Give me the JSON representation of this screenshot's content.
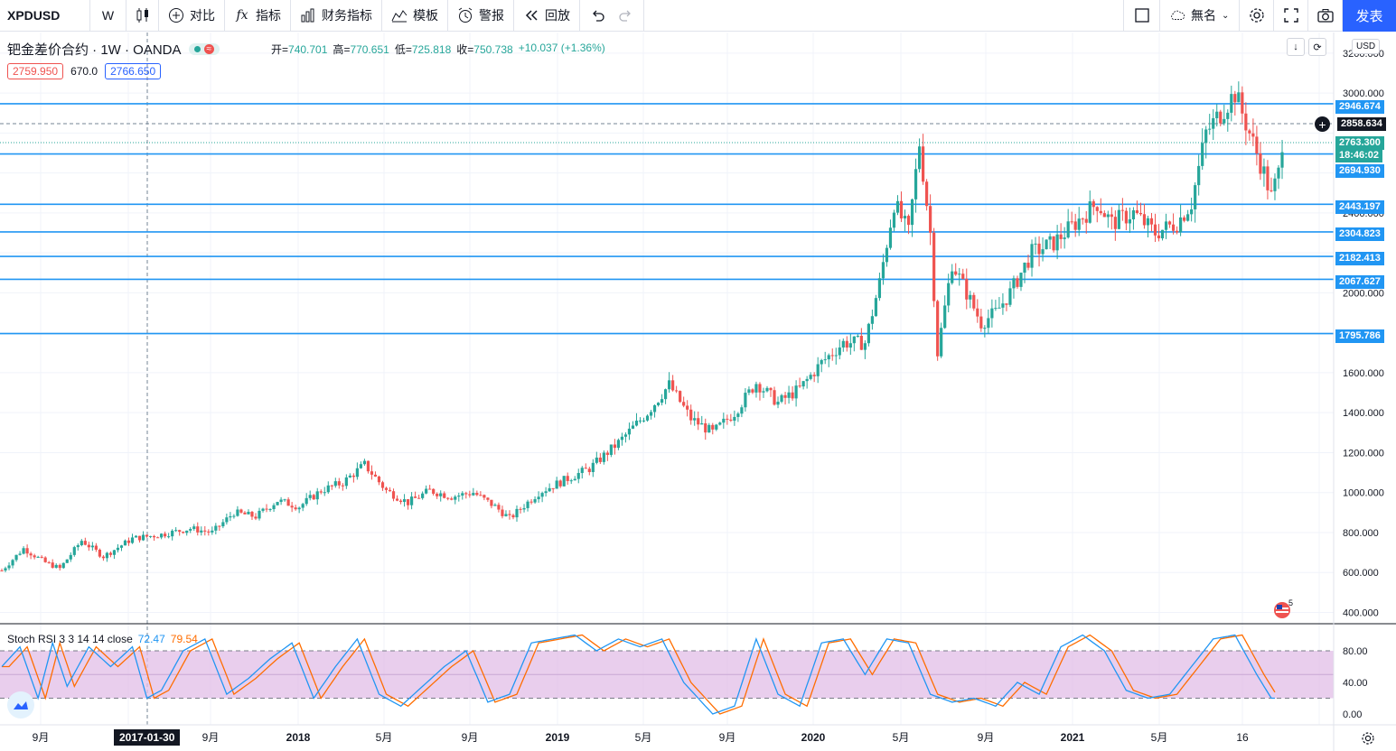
{
  "toolbar": {
    "symbol": "XPDUSD",
    "interval": "W",
    "compare_label": "对比",
    "indicators_label": "指标",
    "financials_label": "财务指标",
    "templates_label": "模板",
    "alert_label": "警报",
    "replay_label": "回放",
    "layout_name": "無名",
    "publish_label": "发表"
  },
  "legend": {
    "title": "钯金差价合约 · 1W · OANDA",
    "open_label": "开",
    "open": "740.701",
    "high_label": "高",
    "high": "770.651",
    "low_label": "低",
    "low": "725.818",
    "close_label": "收",
    "close": "750.738",
    "change": "+10.037 (+1.36%)",
    "sell_price": "2759.950",
    "spread": "670.0",
    "buy_price": "2766.650",
    "currency": "USD"
  },
  "price_axis": {
    "ticks": [
      "3200.000",
      "3000.000",
      "2400.000",
      "2000.000",
      "1600.000",
      "1400.000",
      "1200.000",
      "1000.000",
      "800.000",
      "600.000",
      "400.000"
    ],
    "labels": {
      "l1": "2946.674",
      "crosshair": "2858.634",
      "last": "2763.300",
      "countdown": "18:46:02",
      "l2": "2694.930",
      "l3": "2443.197",
      "l4": "2304.823",
      "l5": "2182.413",
      "l6": "2067.627",
      "l7": "1795.786"
    }
  },
  "stoch": {
    "title": "Stoch RSI 3 3 14 14 close",
    "k": "72.47",
    "d": "79.54",
    "ticks": [
      "80.00",
      "40.00",
      "0.00"
    ]
  },
  "time_axis": {
    "labels": [
      "9月",
      "5月",
      "9月",
      "2018",
      "5月",
      "9月",
      "2019",
      "5月",
      "9月",
      "2020",
      "5月",
      "9月",
      "2021",
      "5月",
      "16"
    ],
    "cursor_date": "2017-01-30"
  },
  "flag_number": "5",
  "colors": {
    "up": "#26a69a",
    "down": "#ef5350",
    "hline": "#2196f3",
    "accent": "#2962ff"
  },
  "chart_data": {
    "type": "candlestick",
    "price_range": [
      400,
      3200
    ],
    "hlines": [
      2946.674,
      2694.93,
      2443.197,
      2304.823,
      2182.413,
      2067.627,
      1795.786
    ],
    "anchors": [
      [
        0,
        610
      ],
      [
        6,
        720
      ],
      [
        12,
        650
      ],
      [
        16,
        620
      ],
      [
        22,
        760
      ],
      [
        28,
        680
      ],
      [
        36,
        770
      ],
      [
        44,
        790
      ],
      [
        52,
        820
      ],
      [
        58,
        800
      ],
      [
        64,
        900
      ],
      [
        70,
        880
      ],
      [
        76,
        960
      ],
      [
        82,
        930
      ],
      [
        88,
        1010
      ],
      [
        94,
        1050
      ],
      [
        100,
        1140
      ],
      [
        106,
        1010
      ],
      [
        112,
        950
      ],
      [
        118,
        1010
      ],
      [
        124,
        980
      ],
      [
        130,
        1000
      ],
      [
        136,
        930
      ],
      [
        140,
        870
      ],
      [
        148,
        1000
      ],
      [
        156,
        1070
      ],
      [
        162,
        1120
      ],
      [
        170,
        1250
      ],
      [
        178,
        1400
      ],
      [
        184,
        1540
      ],
      [
        190,
        1370
      ],
      [
        196,
        1300
      ],
      [
        202,
        1400
      ],
      [
        208,
        1550
      ],
      [
        214,
        1450
      ],
      [
        220,
        1520
      ],
      [
        226,
        1650
      ],
      [
        232,
        1750
      ],
      [
        238,
        1750
      ],
      [
        242,
        2050
      ],
      [
        246,
        2450
      ],
      [
        250,
        2300
      ],
      [
        253,
        2750
      ],
      [
        256,
        2300
      ],
      [
        258,
        1700
      ],
      [
        262,
        2150
      ],
      [
        266,
        2000
      ],
      [
        270,
        1850
      ],
      [
        274,
        1900
      ],
      [
        278,
        2000
      ],
      [
        284,
        2200
      ],
      [
        290,
        2250
      ],
      [
        296,
        2350
      ],
      [
        302,
        2450
      ],
      [
        306,
        2350
      ],
      [
        312,
        2400
      ],
      [
        318,
        2300
      ],
      [
        324,
        2350
      ],
      [
        328,
        2450
      ],
      [
        332,
        2800
      ],
      [
        336,
        2900
      ],
      [
        340,
        3000
      ],
      [
        344,
        2800
      ],
      [
        348,
        2600
      ],
      [
        350,
        2480
      ],
      [
        352,
        2600
      ],
      [
        353,
        2760
      ]
    ],
    "stoch_anchors": [
      [
        0,
        60
      ],
      [
        5,
        85
      ],
      [
        10,
        20
      ],
      [
        14,
        90
      ],
      [
        18,
        35
      ],
      [
        24,
        85
      ],
      [
        30,
        60
      ],
      [
        36,
        85
      ],
      [
        40,
        20
      ],
      [
        44,
        30
      ],
      [
        50,
        80
      ],
      [
        56,
        95
      ],
      [
        62,
        25
      ],
      [
        68,
        45
      ],
      [
        74,
        70
      ],
      [
        80,
        90
      ],
      [
        86,
        20
      ],
      [
        92,
        60
      ],
      [
        98,
        95
      ],
      [
        104,
        25
      ],
      [
        110,
        10
      ],
      [
        116,
        35
      ],
      [
        122,
        60
      ],
      [
        128,
        80
      ],
      [
        134,
        15
      ],
      [
        140,
        25
      ],
      [
        146,
        90
      ],
      [
        152,
        95
      ],
      [
        158,
        100
      ],
      [
        164,
        80
      ],
      [
        170,
        95
      ],
      [
        176,
        85
      ],
      [
        182,
        95
      ],
      [
        188,
        40
      ],
      [
        196,
        0
      ],
      [
        202,
        10
      ],
      [
        208,
        95
      ],
      [
        214,
        25
      ],
      [
        220,
        10
      ],
      [
        226,
        90
      ],
      [
        232,
        95
      ],
      [
        238,
        50
      ],
      [
        244,
        95
      ],
      [
        250,
        90
      ],
      [
        256,
        25
      ],
      [
        262,
        15
      ],
      [
        268,
        20
      ],
      [
        274,
        10
      ],
      [
        280,
        40
      ],
      [
        286,
        25
      ],
      [
        292,
        85
      ],
      [
        298,
        100
      ],
      [
        304,
        80
      ],
      [
        310,
        30
      ],
      [
        316,
        20
      ],
      [
        322,
        25
      ],
      [
        328,
        60
      ],
      [
        334,
        95
      ],
      [
        340,
        100
      ],
      [
        346,
        50
      ],
      [
        350,
        20
      ]
    ]
  }
}
